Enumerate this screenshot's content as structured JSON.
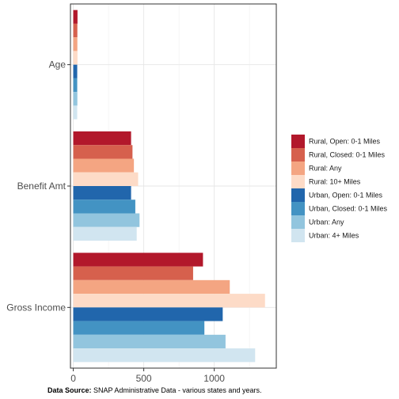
{
  "chart_data": {
    "type": "bar",
    "orientation": "horizontal",
    "categories": [
      "Age",
      "Benefit Amt",
      "Gross Income"
    ],
    "xlim": [
      -20,
      1440
    ],
    "x_ticks": [
      0,
      500,
      1000
    ],
    "x_tick_labels": [
      "0",
      "500",
      "1000"
    ],
    "grid": true,
    "legend_position": "right",
    "series": [
      {
        "name": "Rural, Open: 0-1 Miles",
        "color": "#b2182b",
        "values": [
          30,
          410,
          920
        ]
      },
      {
        "name": "Rural, Closed: 0-1 Miles",
        "color": "#d6604d",
        "values": [
          29,
          420,
          850
        ]
      },
      {
        "name": "Rural: Any",
        "color": "#f4a582",
        "values": [
          29,
          430,
          1110
        ]
      },
      {
        "name": "Rural: 10+ Miles",
        "color": "#fddbc7",
        "values": [
          30,
          460,
          1360
        ]
      },
      {
        "name": "Urban, Open: 0-1 Miles",
        "color": "#2166ac",
        "values": [
          28,
          410,
          1060
        ]
      },
      {
        "name": "Urban, Closed: 0-1 Miles",
        "color": "#4393c3",
        "values": [
          28,
          440,
          930
        ]
      },
      {
        "name": "Urban: Any",
        "color": "#92c5de",
        "values": [
          29,
          470,
          1080
        ]
      },
      {
        "name": "Urban: 4+ Miles",
        "color": "#d1e5f0",
        "values": [
          28,
          450,
          1290
        ]
      }
    ]
  },
  "caption": {
    "label": "Data Source:",
    "text": " SNAP Administrative Data - various states and years."
  }
}
